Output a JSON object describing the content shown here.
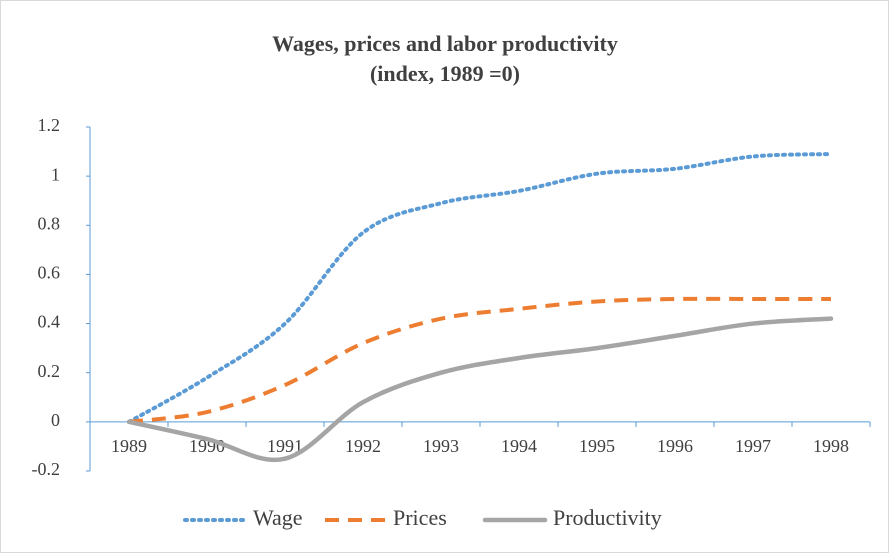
{
  "chart_data": {
    "type": "line",
    "title": [
      "Wages, prices and labor productivity",
      "(index, 1989 =0)"
    ],
    "categories": [
      "1989",
      "1990",
      "1991",
      "1992",
      "1993",
      "1994",
      "1995",
      "1996",
      "1997",
      "1998"
    ],
    "series": [
      {
        "name": "Wage",
        "color": "#5b9bd5",
        "values": [
          0,
          0.18,
          0.4,
          0.77,
          0.89,
          0.94,
          1.01,
          1.03,
          1.08,
          1.09
        ]
      },
      {
        "name": "Prices",
        "color": "#ed7d31",
        "values": [
          0,
          0.04,
          0.15,
          0.32,
          0.42,
          0.46,
          0.49,
          0.5,
          0.5,
          0.5
        ]
      },
      {
        "name": "Productivity",
        "color": "#a5a5a5",
        "values": [
          0,
          -0.07,
          -0.15,
          0.08,
          0.2,
          0.26,
          0.3,
          0.35,
          0.4,
          0.42
        ]
      }
    ],
    "ylim": [
      -0.2,
      1.2
    ],
    "yticks": [
      -0.2,
      0,
      0.2,
      0.4,
      0.6,
      0.8,
      1,
      1.2
    ],
    "grid": false,
    "legend": "bottom"
  }
}
